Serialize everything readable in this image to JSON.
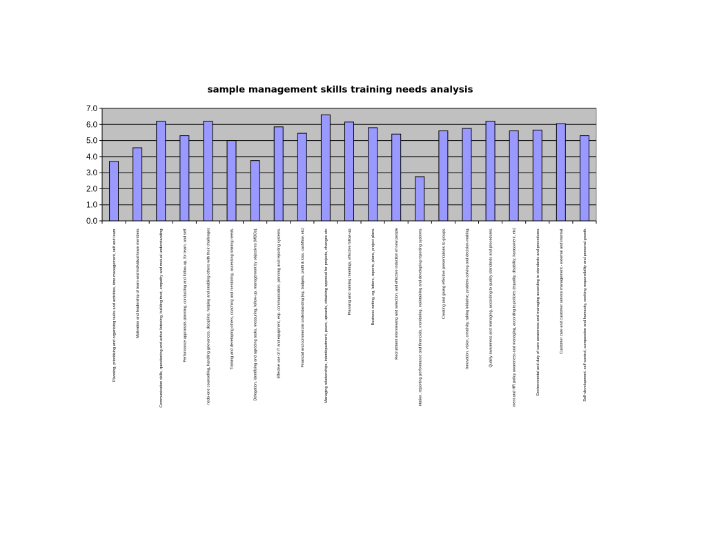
{
  "chart_data": {
    "type": "bar",
    "title": "sample management skills training needs analysis",
    "xlabel": "",
    "ylabel": "",
    "ylim": [
      0,
      7
    ],
    "yticks": [
      "0.0",
      "1.0",
      "2.0",
      "3.0",
      "4.0",
      "5.0",
      "6.0",
      "7.0"
    ],
    "grid": true,
    "legend": "none",
    "categories": [
      "Planning, prioritising and organising tasks and activities, time management, self and team.",
      "Motivation and leadership of team and individual team members.",
      "Communication skills, questioning and active listening, building trust, empathy and mutual understanding.",
      "Performance appraisals planning, conducting and follow-up, for team, and self.",
      "nedo-one counselling, handling grievances, discipline, helping and enabling others with their challenges",
      "Training and developing others, coaching and mentoring, assessing training needs.",
      "Delegation, identifying and agreeing tasks, measuring, follow-up, management by objectives (MBOs).",
      "Effective use of IT and equipment, esp. communication, planning and reporting systems.",
      "Financial and commercial understanding (eg, budgets, profit & loss, cashflow, etc)",
      "Managing relationships, interdepartment, peers, upwards, obtaining approval for projects, changes etc.",
      "Planning and running meetings, effective follow-up.",
      "Business writing, eg, letters, reports, plans, project plans.",
      "Recruitment interviewing and selection, and effective induction of new people",
      "ntation, reporting performance and financials, monitoring, maintaining and developing reporting systems.",
      "Creating and giving effective presentations to groups.",
      "Innovation, vision, creativity, taking initiative, problem-solving and decision-making.",
      "Quality awareness and managing, according to quality standards and procedures.",
      "ment and HR policy awareness and managing, according to policies (equality, disability, harassment, etc)",
      "Environmental and duty of care awareness and managing according to standards and procedures.",
      "Customer care and customer service management - external and internal.",
      "Self-development, self-control, compassion and humanity, seeking responsibility and personal growth."
    ],
    "values": [
      3.7,
      4.55,
      6.2,
      5.3,
      6.2,
      5.0,
      3.75,
      5.85,
      5.45,
      6.6,
      6.15,
      5.8,
      5.4,
      2.75,
      5.6,
      5.75,
      6.2,
      5.6,
      5.65,
      6.05,
      5.3
    ],
    "colors": {
      "bar_fill": "#9999ff",
      "bar_stroke": "#000000",
      "plot_background": "#c0c0c0",
      "gridline": "#000000"
    }
  }
}
